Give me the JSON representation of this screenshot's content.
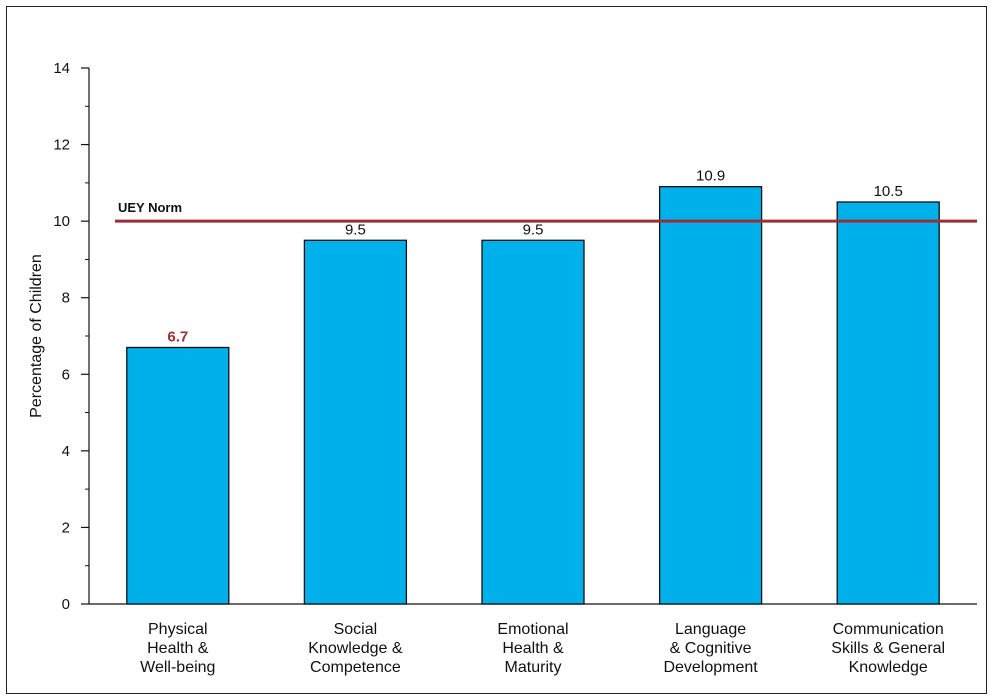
{
  "chart_data": {
    "type": "bar",
    "title": "",
    "xlabel": "",
    "ylabel": "Percentage of Children",
    "ylim": [
      0,
      14
    ],
    "yticks": [
      0,
      2,
      4,
      6,
      8,
      10,
      12,
      14
    ],
    "grid": false,
    "categories": [
      [
        "Physical",
        "Health &",
        "Well-being"
      ],
      [
        "Social",
        "Knowledge &",
        "Competence"
      ],
      [
        "Emotional",
        "Health &",
        "Maturity"
      ],
      [
        "Language",
        "& Cognitive",
        "Development"
      ],
      [
        "Communication",
        "Skills & General",
        "Knowledge"
      ]
    ],
    "values": [
      6.7,
      9.5,
      9.5,
      10.9,
      10.5
    ],
    "value_labels": [
      "6.7",
      "9.5",
      "9.5",
      "10.9",
      "10.5"
    ],
    "highlighted_value_index": 0,
    "reference_line": {
      "value": 10,
      "label": "UEY Norm"
    },
    "colors": {
      "bar": "#00b0ea",
      "bar_stroke": "#111111",
      "reference_line": "#9b2f35",
      "highlight_label": "#9b2f35",
      "text": "#111111"
    }
  }
}
